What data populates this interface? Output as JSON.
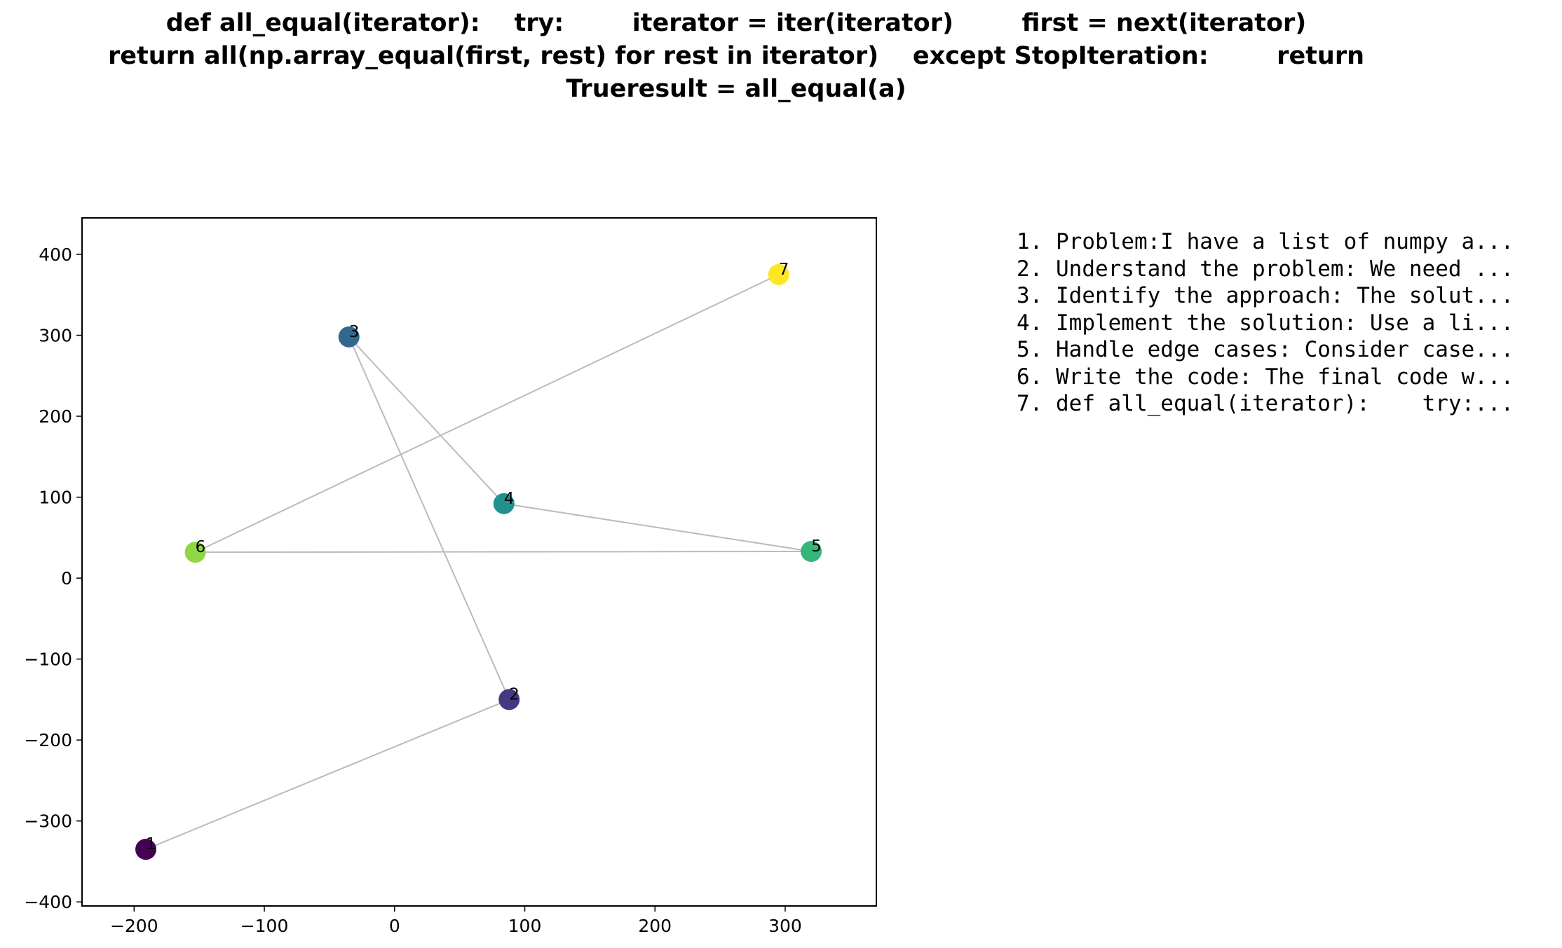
{
  "chart_data": {
    "type": "scatter",
    "title_lines": [
      "def all_equal(iterator):    try:        iterator = iter(iterator)        first = next(iterator)",
      "return all(np.array_equal(first, rest) for rest in iterator)    except StopIteration:        return",
      "Trueresult = all_equal(a)"
    ],
    "xlabel": "",
    "ylabel": "",
    "xlim": [
      -240,
      370
    ],
    "ylim": [
      -405,
      445
    ],
    "xticks": [
      -200,
      -100,
      0,
      100,
      200,
      300
    ],
    "yticks": [
      -400,
      -300,
      -200,
      -100,
      0,
      100,
      200,
      300,
      400
    ],
    "x_tick_labels": [
      "−200",
      "−100",
      "0",
      "100",
      "200",
      "300"
    ],
    "y_tick_labels": [
      "−400",
      "−300",
      "−200",
      "−100",
      "0",
      "100",
      "200",
      "300",
      "400"
    ],
    "grid": false,
    "connect_in_order": true,
    "line_color": "#bbbbbb",
    "points": [
      {
        "label": "1",
        "x": -191,
        "y": -335,
        "color": "#440154"
      },
      {
        "label": "2",
        "x": 88,
        "y": -150,
        "color": "#443983"
      },
      {
        "label": "3",
        "x": -35,
        "y": 298,
        "color": "#31688e"
      },
      {
        "label": "4",
        "x": 84,
        "y": 92,
        "color": "#21918c"
      },
      {
        "label": "5",
        "x": 320,
        "y": 33,
        "color": "#35b779"
      },
      {
        "label": "6",
        "x": -153,
        "y": 32,
        "color": "#8fd744"
      },
      {
        "label": "7",
        "x": 295,
        "y": 375,
        "color": "#fde725"
      }
    ]
  },
  "steps": [
    "1. Problem:I have a list of numpy a...",
    "2. Understand the problem: We need ...",
    "3. Identify the approach: The solut...",
    "4. Implement the solution: Use a li...",
    "5. Handle edge cases: Consider case...",
    "6. Write the code: The final code w...",
    "7. def all_equal(iterator):    try:..."
  ]
}
